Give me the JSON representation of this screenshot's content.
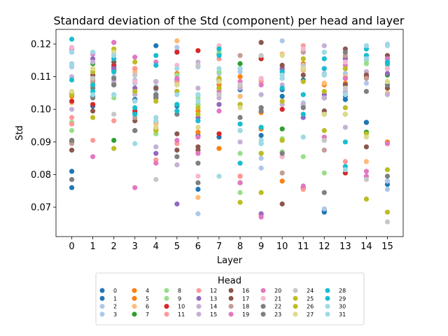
{
  "chart_data": {
    "type": "scatter",
    "title": "Standard deviation of the Std (component) per head and layer",
    "xlabel": "Layer",
    "ylabel": "Std",
    "x_ticks": [
      0,
      1,
      2,
      3,
      4,
      5,
      6,
      7,
      8,
      9,
      10,
      11,
      12,
      13,
      14,
      15
    ],
    "y_ticks": [
      0.07,
      0.08,
      0.09,
      0.1,
      0.11,
      0.12
    ],
    "y_tick_labels": [
      "0.07",
      "0.08",
      "0.09",
      "0.10",
      "0.11",
      "0.12"
    ],
    "xlim": [
      -0.75,
      15.75
    ],
    "ylim": [
      0.061,
      0.1245
    ],
    "grid": false,
    "legend": {
      "title": "Head",
      "placement": "bottom-center",
      "columns": 8
    },
    "series": [
      {
        "name": "0",
        "color": "#1f77b4",
        "values": [
          0.076,
          0.101,
          0.113,
          0.103,
          0.1195,
          0.109,
          0.0755,
          0.109,
          0.106,
          0.094,
          0.104,
          0.109,
          0.0685,
          0.104,
          0.096,
          0.078
        ]
      },
      {
        "name": "1",
        "color": "#1f77b4",
        "values": [
          0.081,
          0.104,
          0.112,
          0.099,
          0.104,
          0.101,
          0.092,
          0.0915,
          0.104,
          0.092,
          0.106,
          0.101,
          0.069,
          0.103,
          0.096,
          0.077
        ]
      },
      {
        "name": "2",
        "color": "#aec7e8",
        "values": [
          0.113,
          0.117,
          0.109,
          0.109,
          0.106,
          0.119,
          0.113,
          0.111,
          0.1115,
          0.082,
          0.121,
          0.101,
          0.0695,
          0.111,
          0.108,
          0.0755
        ]
      },
      {
        "name": "3",
        "color": "#aec7e8",
        "values": [
          0.114,
          0.1175,
          0.11,
          0.108,
          0.107,
          0.118,
          0.068,
          0.108,
          0.1115,
          0.085,
          0.112,
          0.102,
          0.111,
          0.105,
          0.1195,
          0.078
        ]
      },
      {
        "name": "4",
        "color": "#ff7f0e",
        "values": [
          0.104,
          0.1095,
          0.112,
          0.1125,
          0.094,
          0.111,
          0.093,
          0.088,
          0.107,
          0.094,
          0.078,
          0.112,
          0.1075,
          0.108,
          0.1115,
          0.09
        ]
      },
      {
        "name": "5",
        "color": "#ff7f0e",
        "values": [
          0.105,
          0.109,
          0.112,
          0.1125,
          0.096,
          0.121,
          0.0995,
          0.1075,
          0.11,
          0.099,
          0.1125,
          0.114,
          0.108,
          0.1125,
          0.1105,
          0.0895
        ]
      },
      {
        "name": "6",
        "color": "#ffbb78",
        "values": [
          0.102,
          0.108,
          0.108,
          0.1115,
          0.0955,
          0.121,
          0.073,
          0.119,
          0.104,
          0.109,
          0.117,
          0.112,
          0.108,
          0.11,
          0.084,
          0.105
        ]
      },
      {
        "name": "7",
        "color": "#2ca02c",
        "values": [
          0.09,
          0.114,
          0.0905,
          0.1025,
          0.1045,
          0.1085,
          0.1015,
          0.117,
          0.114,
          0.0865,
          0.094,
          0.1125,
          0.1035,
          0.1095,
          0.093,
          0.1105
        ]
      },
      {
        "name": "8",
        "color": "#98df8a",
        "values": [
          0.0935,
          0.1145,
          0.1035,
          0.1085,
          0.1045,
          0.1105,
          0.1015,
          0.1175,
          0.0865,
          0.1155,
          0.087,
          0.0855,
          0.0805,
          0.1095,
          0.114,
          0.1135
        ]
      },
      {
        "name": "9",
        "color": "#98df8a",
        "values": [
          0.096,
          0.1125,
          0.1045,
          0.1045,
          0.0925,
          0.1015,
          0.1035,
          0.1115,
          0.0745,
          0.116,
          0.091,
          0.118,
          0.1175,
          0.1095,
          0.115,
          0.1125
        ]
      },
      {
        "name": "10",
        "color": "#d62728",
        "values": [
          0.1025,
          0.1015,
          0.1135,
          0.0995,
          0.1085,
          0.1175,
          0.118,
          0.0925,
          0.0795,
          0.1155,
          0.1,
          0.076,
          0.1035,
          0.0805,
          0.11,
          0.1155
        ]
      },
      {
        "name": "11",
        "color": "#ff9896",
        "values": [
          0.0975,
          0.0905,
          0.0965,
          0.1125,
          0.0845,
          0.0895,
          0.0965,
          0.1155,
          0.0795,
          0.0675,
          0.0905,
          0.1195,
          0.1105,
          0.084,
          0.1095,
          0.1125
        ]
      },
      {
        "name": "12",
        "color": "#ff9896",
        "values": [
          0.0955,
          0.107,
          0.1125,
          0.1105,
          0.0945,
          0.1085,
          0.0965,
          0.1155,
          0.0775,
          0.1085,
          0.1115,
          0.0755,
          0.1055,
          0.116,
          0.1115,
          0.1165
        ]
      },
      {
        "name": "13",
        "color": "#9467bd",
        "values": [
          0.1185,
          0.1155,
          0.1125,
          0.1065,
          0.0865,
          0.071,
          0.0975,
          0.1015,
          0.1015,
          0.068,
          0.1125,
          0.0975,
          0.1045,
          0.1155,
          0.1105,
          0.111
        ]
      },
      {
        "name": "14",
        "color": "#c5b0d5",
        "values": [
          0.1,
          0.1125,
          0.1075,
          0.1045,
          0.0885,
          0.1055,
          0.1065,
          0.1085,
          0.1065,
          0.1095,
          0.1075,
          0.1045,
          0.1035,
          0.1055,
          0.1115,
          0.1085
        ]
      },
      {
        "name": "15",
        "color": "#c5b0d5",
        "values": [
          0.11,
          0.1145,
          0.1085,
          0.1055,
          0.1085,
          0.083,
          0.1145,
          0.1035,
          0.09,
          0.1045,
          0.1015,
          0.1015,
          0.1195,
          0.0945,
          0.1195,
          0.1045
        ]
      },
      {
        "name": "16",
        "color": "#8c564b",
        "values": [
          0.0875,
          0.0995,
          0.1145,
          0.0935,
          0.1065,
          0.0925,
          0.0875,
          0.1065,
          0.1125,
          0.1205,
          0.071,
          0.1105,
          0.0995,
          0.1185,
          0.1105,
          0.1165
        ]
      },
      {
        "name": "17",
        "color": "#8c564b",
        "values": [
          0.0905,
          0.1105,
          0.1075,
          0.0965,
          0.1035,
          0.0875,
          0.0885,
          0.1045,
          0.0775,
          0.1005,
          0.1135,
          0.1125,
          0.0985,
          0.1075,
          0.0885,
          0.1065
        ]
      },
      {
        "name": "18",
        "color": "#c49c94",
        "values": [
          0.0895,
          0.1085,
          0.1115,
          0.0975,
          0.1045,
          0.1075,
          0.0865,
          0.1065,
          0.1165,
          0.1075,
          0.0805,
          0.1175,
          0.0875,
          0.1165,
          0.1095,
          0.1075
        ]
      },
      {
        "name": "19",
        "color": "#e377c2",
        "values": [
          0.1175,
          0.0855,
          0.1205,
          0.076,
          0.1145,
          0.0905,
          0.0915,
          0.0995,
          0.1085,
          0.1075,
          0.0855,
          0.0765,
          0.1125,
          0.1135,
          0.081,
          0.0895
        ]
      },
      {
        "name": "20",
        "color": "#e377c2",
        "values": [
          0.1185,
          0.117,
          0.1205,
          0.116,
          0.0835,
          0.1095,
          0.0865,
          0.1055,
          0.0775,
          0.067,
          0.1095,
          0.1125,
          0.0915,
          0.1095,
          0.0795,
          0.1155
        ]
      },
      {
        "name": "21",
        "color": "#f7b6d2",
        "values": [
          0.119,
          0.1115,
          0.1165,
          0.1085,
          0.0975,
          0.1135,
          0.0795,
          0.1195,
          0.1125,
          0.1095,
          0.0855,
          0.1185,
          0.1125,
          0.1145,
          0.1165,
          0.1125
        ]
      },
      {
        "name": "22",
        "color": "#7f7f7f",
        "values": [
          0.0905,
          0.1035,
          0.1075,
          0.0935,
          0.1035,
          0.0985,
          0.0835,
          0.1095,
          0.0935,
          0.0995,
          0.1115,
          0.1135,
          0.0745,
          0.0985,
          0.1055,
          0.0795
        ]
      },
      {
        "name": "23",
        "color": "#7f7f7f",
        "values": [
          0.0785,
          0.1065,
          0.1095,
          0.0935,
          0.1045,
          0.0855,
          0.0775,
          0.1095,
          0.0975,
          0.1005,
          0.0865,
          0.1005,
          0.0905,
          0.1175,
          0.1165,
          0.1075
        ]
      },
      {
        "name": "24",
        "color": "#c7c7c7",
        "values": [
          0.1045,
          0.1095,
          0.0985,
          0.1105,
          0.0785,
          0.1055,
          0.1135,
          0.1045,
          0.1075,
          0.1165,
          0.1105,
          0.1135,
          0.0905,
          0.1065,
          0.0785,
          0.0655
        ]
      },
      {
        "name": "25",
        "color": "#bcbd22",
        "values": [
          0.1045,
          0.0975,
          0.1185,
          0.1055,
          0.1025,
          0.1055,
          0.1005,
          0.1095,
          0.0715,
          0.0865,
          0.0905,
          0.1085,
          0.1055,
          0.1125,
          0.0925,
          0.0685
        ]
      },
      {
        "name": "26",
        "color": "#bcbd22",
        "values": [
          0.1045,
          0.1115,
          0.088,
          0.1145,
          0.0935,
          0.1075,
          0.0985,
          0.1065,
          0.1015,
          0.0745,
          0.1025,
          0.1155,
          0.0935,
          0.1005,
          0.0725,
          0.0815
        ]
      },
      {
        "name": "27",
        "color": "#dbdb8d",
        "values": [
          0.1055,
          0.1125,
          0.1175,
          0.1025,
          0.0945,
          0.1075,
          0.0945,
          0.1085,
          0.1005,
          0.0905,
          0.1165,
          0.1125,
          0.0985,
          0.0985,
          0.0915,
          0.1085
        ]
      },
      {
        "name": "28",
        "color": "#17becf",
        "values": [
          0.1215,
          0.1075,
          0.1155,
          0.1005,
          0.1165,
          0.0995,
          0.1045,
          0.1165,
          0.0955,
          0.0945,
          0.1065,
          0.0985,
          0.1155,
          0.09,
          0.1185,
          0.1145
        ]
      },
      {
        "name": "29",
        "color": "#17becf",
        "values": [
          0.109,
          0.1055,
          0.1115,
          0.0985,
          0.1135,
          0.1015,
          0.0965,
          0.1185,
          0.0835,
          0.0895,
          0.1115,
          0.1045,
          0.1125,
          0.0825,
          0.1165,
          0.114
        ]
      },
      {
        "name": "30",
        "color": "#9edae5",
        "values": [
          0.1135,
          0.1045,
          0.1045,
          0.1025,
          0.0965,
          0.1045,
          0.1025,
          0.0795,
          0.0935,
          0.0895,
          0.1095,
          0.0915,
          0.1175,
          0.0815,
          0.1195,
          0.12
        ]
      },
      {
        "name": "31",
        "color": "#9edae5",
        "values": [
          0.1175,
          0.1175,
          0.1165,
          0.0895,
          0.0975,
          0.1125,
          0.1045,
          0.1125,
          0.1125,
          0.0905,
          0.1105,
          0.0915,
          0.1105,
          0.1045,
          0.1155,
          0.1195
        ]
      }
    ]
  }
}
